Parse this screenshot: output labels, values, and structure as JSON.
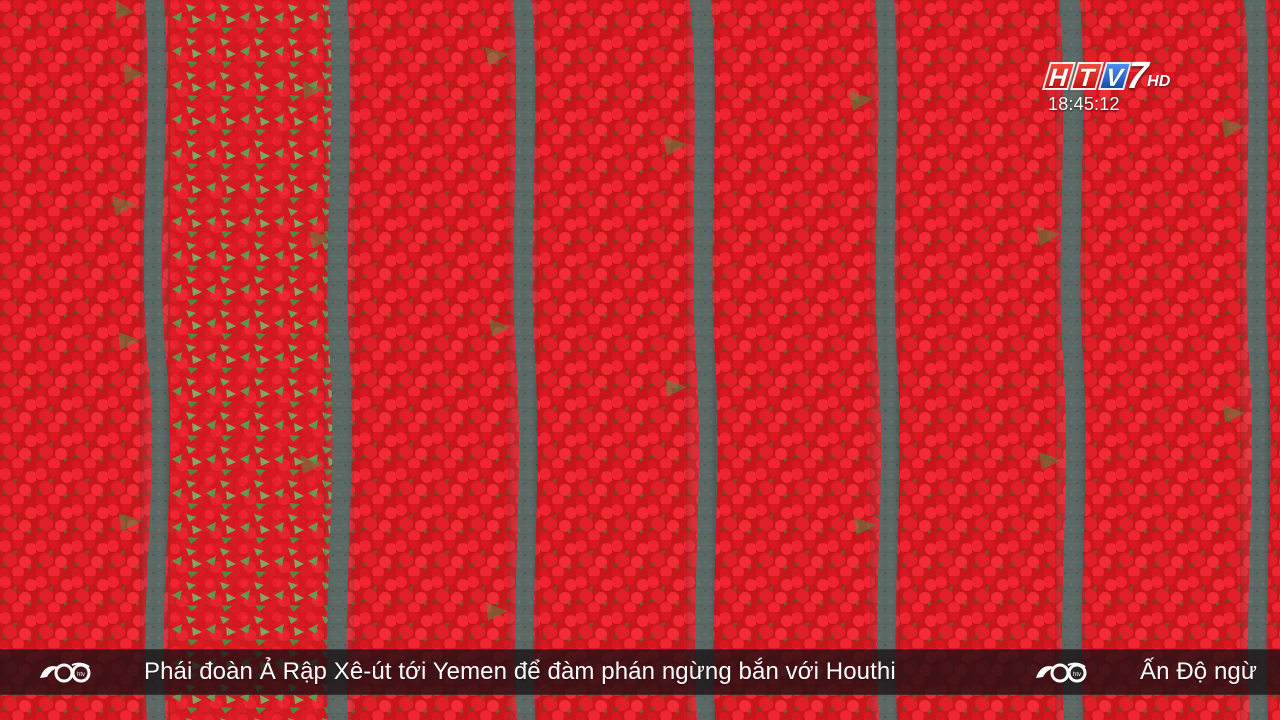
{
  "scene": {
    "subject": "red tulip rows"
  },
  "broadcast": {
    "channel_name": "HTV7",
    "channel_letters": [
      "H",
      "T",
      "V",
      "7"
    ],
    "hd_mark": "HD",
    "time": "18:45:12"
  },
  "ticker": {
    "headline": "Phái đoàn Ả Rập Xê-út tới Yemen để đàm phán ngừng bắn với Houthi",
    "next_headline_partial": "Ấn Độ ngừ",
    "logo_icon": "htv-news-logo-icon"
  },
  "colors": {
    "tulip_red": "#d91c24",
    "leaf_green": "#37a04b",
    "path_gray": "#52605d",
    "ticker_background": "#191012"
  }
}
